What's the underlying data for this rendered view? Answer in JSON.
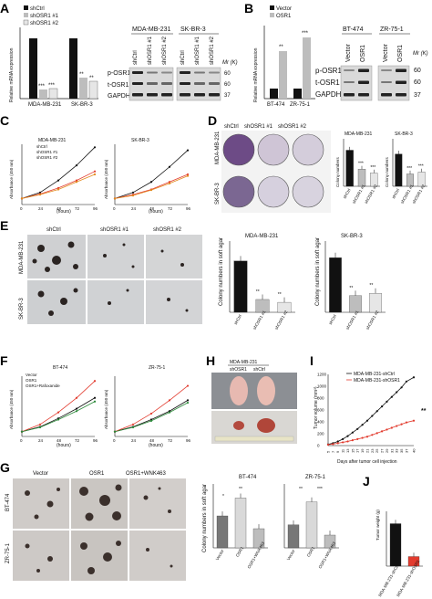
{
  "panels": {
    "A": {
      "letter": "A",
      "legend": [
        "shCtrl",
        "shOSR1 #1",
        "shOSR1 #2"
      ],
      "ylabel": "Relative mRNA expression",
      "groups": [
        "MDA-MB-231",
        "SK-BR-3"
      ],
      "blot_cells": [
        "MDA-MB-231",
        "SK-BR-3"
      ],
      "lanes": [
        "shCtrl",
        "shOSR1 #1",
        "shOSR1 #2"
      ],
      "rows": [
        "p-OSR1",
        "t-OSR1",
        "GAPDH"
      ],
      "mr": "Mr (K)",
      "markers": [
        "60",
        "60",
        "37"
      ],
      "stars": [
        "***",
        "***",
        "**",
        "**"
      ]
    },
    "B": {
      "letter": "B",
      "legend": [
        "Vector",
        "OSR1"
      ],
      "ylabel": "Relative mRNA expression",
      "groups": [
        "BT-474",
        "ZR-75-1"
      ],
      "blot_cells": [
        "BT-474",
        "ZR-75-1"
      ],
      "lanes": [
        "Vector",
        "OSR1"
      ],
      "rows": [
        "p-OSR1",
        "t-OSR1",
        "GAPDH"
      ],
      "mr": "Mr (K)",
      "markers": [
        "60",
        "60",
        "37"
      ],
      "stars": [
        "**",
        "***"
      ]
    },
    "C": {
      "letter": "C",
      "titles": [
        "MDA-MB-231",
        "SK-BR-3"
      ],
      "legend": [
        "shCtrl",
        "shOSR1 #1",
        "shOSR1 #2"
      ],
      "xlabel": "(hours)",
      "ylabel": "Absorbance (450 nm)",
      "xticks": [
        "0",
        "24",
        "48",
        "72",
        "96"
      ]
    },
    "D": {
      "letter": "D",
      "cols": [
        "shCtrl",
        "shOSR1 #1",
        "shOSR1 #2"
      ],
      "rows": [
        "MDA-MB-231",
        "SK-BR-3"
      ],
      "titles": [
        "MDA-MB-231",
        "SK-BR-3"
      ],
      "ylabel": "Colony numbers",
      "cats": [
        "shCtrl",
        "shOSR1 #1",
        "shOSR1 #2"
      ]
    },
    "E": {
      "letter": "E",
      "cols": [
        "shCtrl",
        "shOSR1 #1",
        "shOSR1 #2"
      ],
      "rows": [
        "MDA-MB-231",
        "SK-BR-3"
      ],
      "titles": [
        "MDA-MB-231",
        "SK-BR-3"
      ],
      "ylabel": "Colony numbers in soft agar",
      "cats": [
        "shCtrl",
        "shOSR1 #1",
        "shOSR1 #2"
      ],
      "stars": [
        "**",
        "**",
        "**",
        "**"
      ]
    },
    "F": {
      "letter": "F",
      "titles": [
        "BT-474",
        "ZR-75-1"
      ],
      "legend": [
        "Vector",
        "OSR1",
        "OSR1+Rafoxanide"
      ],
      "xlabel": "(hours)",
      "ylabel": "Absorbance (450 nm)",
      "xticks": [
        "0",
        "24",
        "48",
        "72",
        "96"
      ]
    },
    "G": {
      "letter": "G",
      "cols": [
        "Vector",
        "OSR1",
        "OSR1+WNK463"
      ],
      "rows": [
        "BT-474",
        "ZR-75-1"
      ],
      "titles": [
        "BT-474",
        "ZR-75-1"
      ],
      "ylabel": "Colony numbers in soft agar",
      "cats": [
        "Vector",
        "OSR1",
        "OSR1+WNK463"
      ],
      "stars": [
        "*",
        "**",
        "**",
        "***"
      ]
    },
    "H": {
      "letter": "H",
      "title": "MDA-MB-231",
      "labels": [
        "shOSR1",
        "shCtrl"
      ]
    },
    "I": {
      "letter": "I",
      "legend": [
        "MDA-MB-231-shCtrl",
        "MDA-MB-231-shOSR1"
      ],
      "xlabel": "Days after tumor cell injection",
      "ylabel": "Tumor volume (mm³)",
      "yticks": [
        "0",
        "200",
        "400",
        "600",
        "800",
        "1000",
        "1200"
      ],
      "xticks": [
        "5",
        "7",
        "9",
        "11",
        "13",
        "15",
        "17",
        "19",
        "21",
        "23",
        "25",
        "27",
        "29",
        "31",
        "33",
        "35",
        "37",
        "40"
      ],
      "sig": "**"
    },
    "J": {
      "letter": "J",
      "ylabel": "Tumor weight (g)",
      "cats": [
        "MDA-MB-231-shCtrl",
        "MDA-MB-231-shOSR1"
      ],
      "stars": "***"
    }
  },
  "colors": {
    "dark_bar": "#111111",
    "grey_bar": "#bdbdbd",
    "light_bar": "#e6e6e6",
    "red": "#e23b2e",
    "green": "#2c8a3a",
    "orange": "#e38a1c",
    "blot_bg": "#d9d9d9",
    "plate_bg": "#cfd0d2"
  },
  "chart_data": [
    {
      "type": "bar",
      "panel": "A",
      "categories": [
        "MDA-MB-231",
        "SK-BR-3"
      ],
      "series": [
        {
          "name": "shCtrl",
          "values": [
            1.0,
            1.0
          ]
        },
        {
          "name": "shOSR1 #1",
          "values": [
            0.15,
            0.35
          ]
        },
        {
          "name": "shOSR1 #2",
          "values": [
            0.16,
            0.28
          ]
        }
      ],
      "ylim": [
        0,
        1.5
      ]
    },
    {
      "type": "bar",
      "panel": "B",
      "categories": [
        "BT-474",
        "ZR-75-1"
      ],
      "series": [
        {
          "name": "Vector",
          "values": [
            1,
            1
          ]
        },
        {
          "name": "OSR1",
          "values": [
            4.8,
            6.2
          ]
        }
      ],
      "ylim": [
        0,
        8
      ]
    },
    {
      "type": "line",
      "panel": "C",
      "title": "MDA-MB-231",
      "x": [
        0,
        24,
        48,
        72,
        96
      ],
      "series": [
        {
          "name": "shCtrl",
          "values": [
            0.2,
            0.4,
            0.8,
            1.3,
            1.9
          ]
        },
        {
          "name": "shOSR1 #1",
          "values": [
            0.2,
            0.35,
            0.55,
            0.8,
            1.1
          ]
        },
        {
          "name": "shOSR1 #2",
          "values": [
            0.2,
            0.33,
            0.5,
            0.75,
            1.0
          ]
        }
      ],
      "ylim": [
        0,
        2
      ]
    },
    {
      "type": "line",
      "panel": "C",
      "title": "SK-BR-3",
      "x": [
        0,
        24,
        48,
        72,
        96
      ],
      "series": [
        {
          "name": "shCtrl",
          "values": [
            0.2,
            0.4,
            0.75,
            1.25,
            1.8
          ]
        },
        {
          "name": "shOSR1 #1",
          "values": [
            0.2,
            0.33,
            0.5,
            0.75,
            1.0
          ]
        },
        {
          "name": "shOSR1 #2",
          "values": [
            0.2,
            0.3,
            0.48,
            0.7,
            0.95
          ]
        }
      ],
      "ylim": [
        0,
        2
      ]
    },
    {
      "type": "bar",
      "panel": "D",
      "title": "MDA-MB-231",
      "categories": [
        "shCtrl",
        "shOSR1 #1",
        "shOSR1 #2"
      ],
      "values": [
        380,
        180,
        140
      ],
      "ylim": [
        0,
        500
      ]
    },
    {
      "type": "bar",
      "panel": "D",
      "title": "SK-BR-3",
      "categories": [
        "shCtrl",
        "shOSR1 #1",
        "shOSR1 #2"
      ],
      "values": [
        340,
        130,
        150
      ],
      "ylim": [
        0,
        500
      ]
    },
    {
      "type": "bar",
      "panel": "E",
      "title": "MDA-MB-231",
      "categories": [
        "shCtrl",
        "shOSR1 #1",
        "shOSR1 #2"
      ],
      "values": [
        18,
        4.5,
        3.5
      ],
      "ylim": [
        0,
        25
      ]
    },
    {
      "type": "bar",
      "panel": "E",
      "title": "SK-BR-3",
      "categories": [
        "shCtrl",
        "shOSR1 #1",
        "shOSR1 #2"
      ],
      "values": [
        11.5,
        3.5,
        4
      ],
      "ylim": [
        0,
        15
      ]
    },
    {
      "type": "line",
      "panel": "F",
      "title": "BT-474",
      "x": [
        0,
        24,
        48,
        72,
        96
      ],
      "series": [
        {
          "name": "Vector",
          "values": [
            0.2,
            0.4,
            0.75,
            1.15,
            1.6
          ]
        },
        {
          "name": "OSR1",
          "values": [
            0.2,
            0.5,
            1.0,
            1.6,
            2.3
          ]
        },
        {
          "name": "OSR1+Rafoxanide",
          "values": [
            0.2,
            0.38,
            0.7,
            1.05,
            1.45
          ]
        }
      ],
      "ylim": [
        0,
        2.5
      ]
    },
    {
      "type": "line",
      "panel": "F",
      "title": "ZR-75-1",
      "x": [
        0,
        24,
        48,
        72,
        96
      ],
      "series": [
        {
          "name": "Vector",
          "values": [
            0.2,
            0.4,
            0.7,
            1.05,
            1.5
          ]
        },
        {
          "name": "OSR1",
          "values": [
            0.2,
            0.5,
            0.95,
            1.5,
            2.1
          ]
        },
        {
          "name": "OSR1+Rafoxanide",
          "values": [
            0.2,
            0.38,
            0.65,
            1.0,
            1.4
          ]
        }
      ],
      "ylim": [
        0,
        2.5
      ]
    },
    {
      "type": "bar",
      "panel": "G",
      "title": "BT-474",
      "categories": [
        "Vector",
        "OSR1",
        "OSR1+WNK463"
      ],
      "values": [
        12.5,
        19.5,
        7.5
      ],
      "ylim": [
        0,
        25
      ]
    },
    {
      "type": "bar",
      "panel": "G",
      "title": "ZR-75-1",
      "categories": [
        "Vector",
        "OSR1",
        "OSR1+WNK463"
      ],
      "values": [
        9,
        18,
        5
      ],
      "ylim": [
        0,
        25
      ]
    },
    {
      "type": "line",
      "panel": "I",
      "x": [
        5,
        7,
        9,
        11,
        13,
        15,
        17,
        19,
        21,
        23,
        25,
        27,
        29,
        31,
        33,
        35,
        37,
        40
      ],
      "series": [
        {
          "name": "MDA-MB-231-shCtrl",
          "values": [
            20,
            40,
            70,
            110,
            160,
            220,
            280,
            350,
            420,
            500,
            580,
            660,
            740,
            820,
            900,
            980,
            1080,
            1150
          ]
        },
        {
          "name": "MDA-MB-231-shOSR1",
          "values": [
            15,
            25,
            40,
            55,
            70,
            90,
            110,
            130,
            150,
            180,
            210,
            240,
            270,
            300,
            330,
            360,
            390,
            420
          ]
        }
      ],
      "ylim": [
        0,
        1200
      ]
    },
    {
      "type": "bar",
      "panel": "J",
      "categories": [
        "MDA-MB-231-shCtrl",
        "MDA-MB-231-shOSR1"
      ],
      "values": [
        1.55,
        0.35
      ],
      "ylim": [
        0,
        2
      ]
    }
  ]
}
